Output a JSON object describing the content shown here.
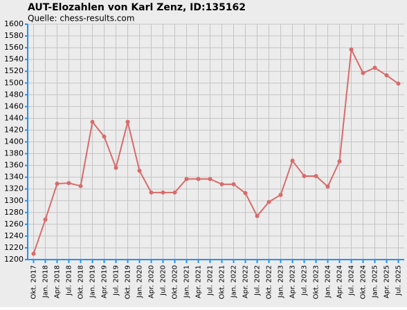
{
  "chart_data": {
    "type": "line",
    "title": "AUT-Elozahlen von Karl Zenz, ID:135162",
    "subtitle": "Quelle: chess-results.com",
    "categories": [
      "Okt. 2017",
      "Jan. 2018",
      "Apr. 2018",
      "Jul. 2018",
      "Okt. 2018",
      "Jan. 2019",
      "Apr. 2019",
      "Jul. 2019",
      "Okt. 2019",
      "Jan. 2020",
      "Apr. 2020",
      "Jul. 2020",
      "Okt. 2020",
      "Jan. 2021",
      "Apr. 2021",
      "Jul. 2021",
      "Okt. 2021",
      "Jan. 2022",
      "Apr. 2022",
      "Jul. 2022",
      "Okt. 2022",
      "Jan. 2023",
      "Apr. 2023",
      "Jul. 2023",
      "Okt. 2023",
      "Jan. 2024",
      "Apr. 2024",
      "Jul. 2024",
      "Okt. 2024",
      "Jan. 2025",
      "Apr. 2025",
      "Jul. 2025"
    ],
    "values": [
      1210,
      1268,
      1329,
      1330,
      1325,
      1434,
      1409,
      1356,
      1434,
      1351,
      1314,
      1314,
      1314,
      1337,
      1337,
      1337,
      1328,
      1328,
      1313,
      1274,
      1298,
      1310,
      1368,
      1342,
      1342,
      1324,
      1367,
      1557,
      1517,
      1526,
      1513,
      1499
    ],
    "color": "#d96a6a",
    "ylim": [
      1200,
      1600
    ],
    "yticks": [
      1200,
      1220,
      1240,
      1260,
      1280,
      1300,
      1320,
      1340,
      1360,
      1380,
      1400,
      1420,
      1440,
      1460,
      1480,
      1500,
      1520,
      1540,
      1560,
      1580,
      1600
    ],
    "grid": true
  }
}
